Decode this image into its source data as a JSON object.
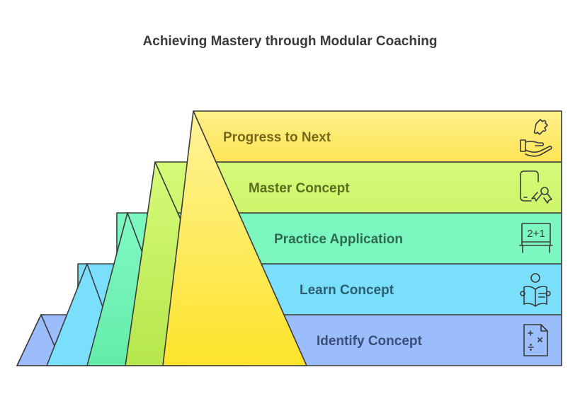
{
  "title": "Achieving Mastery through Modular Coaching",
  "steps": [
    {
      "label": "Identify Concept",
      "icon": "math-worksheet-icon",
      "color": "#9bbdfb",
      "text_color": "#3a4f78"
    },
    {
      "label": "Learn Concept",
      "icon": "student-reading-icon",
      "color": "#7adffa",
      "text_color": "#2c5e72"
    },
    {
      "label": "Practice Application",
      "icon": "chalkboard-equation-icon",
      "color": "#7bf7bf",
      "text_color": "#2f6a52"
    },
    {
      "label": "Master Concept",
      "icon": "certificate-award-icon",
      "color": "#d3f870",
      "text_color": "#5a6d20"
    },
    {
      "label": "Progress to Next",
      "icon": "hand-puzzle-piece-icon",
      "color": "#fde86a",
      "text_color": "#76681a"
    }
  ],
  "chalkboard_text": "2+1"
}
